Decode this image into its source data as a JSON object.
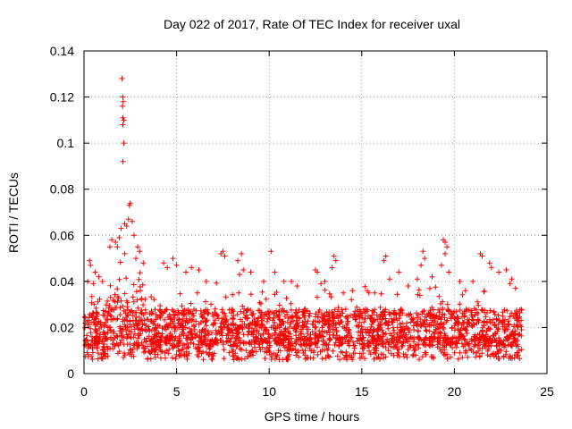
{
  "chart_data": {
    "type": "scatter",
    "title": "Day 022 of 2017, Rate Of TEC Index for receiver uxal",
    "xlabel": "GPS time / hours",
    "ylabel": "ROTI / TECUs",
    "xlim": [
      0,
      25
    ],
    "ylim": [
      0,
      0.14
    ],
    "x_ticks": [
      0,
      5,
      10,
      15,
      20,
      25
    ],
    "x_tick_labels": [
      "0",
      "5",
      "10",
      "15",
      "20",
      "25"
    ],
    "y_ticks": [
      0,
      0.02,
      0.04,
      0.06,
      0.08,
      0.1,
      0.12,
      0.14
    ],
    "y_tick_labels": [
      "0",
      "0.02",
      "0.04",
      "0.06",
      "0.08",
      "0.1",
      "0.12",
      "0.14"
    ],
    "grid": true,
    "marker": "+",
    "color": "#ff0000",
    "series": [
      {
        "points": [
          [
            2.05,
            0.128
          ],
          [
            2.1,
            0.12
          ],
          [
            2.12,
            0.118
          ],
          [
            2.08,
            0.116
          ],
          [
            2.1,
            0.111
          ],
          [
            2.15,
            0.11
          ],
          [
            2.1,
            0.108
          ],
          [
            2.15,
            0.1
          ],
          [
            2.1,
            0.092
          ],
          [
            2.5,
            0.074
          ],
          [
            2.45,
            0.073
          ],
          [
            2.4,
            0.067
          ],
          [
            2.6,
            0.066
          ],
          [
            2.2,
            0.065
          ],
          [
            2.0,
            0.063
          ],
          [
            2.3,
            0.064
          ],
          [
            2.7,
            0.06
          ],
          [
            1.9,
            0.059
          ],
          [
            1.7,
            0.057
          ],
          [
            1.5,
            0.058
          ],
          [
            1.8,
            0.055
          ],
          [
            2.9,
            0.055
          ],
          [
            1.4,
            0.055
          ],
          [
            3.0,
            0.053
          ],
          [
            2.2,
            0.052
          ],
          [
            2.8,
            0.05
          ],
          [
            3.2,
            0.048
          ],
          [
            0.3,
            0.049
          ],
          [
            0.35,
            0.047
          ],
          [
            0.6,
            0.044
          ],
          [
            0.8,
            0.042
          ],
          [
            1.0,
            0.04
          ],
          [
            0.5,
            0.039
          ],
          [
            0.2,
            0.04
          ],
          [
            4.3,
            0.048
          ],
          [
            4.5,
            0.046
          ],
          [
            4.8,
            0.05
          ],
          [
            5.0,
            0.047
          ],
          [
            5.8,
            0.046
          ],
          [
            5.5,
            0.044
          ],
          [
            6.2,
            0.045
          ],
          [
            6.6,
            0.04
          ],
          [
            7.5,
            0.053
          ],
          [
            7.6,
            0.051
          ],
          [
            7.4,
            0.052
          ],
          [
            8.3,
            0.049
          ],
          [
            8.5,
            0.052
          ],
          [
            8.6,
            0.045
          ],
          [
            8.4,
            0.043
          ],
          [
            9.0,
            0.044
          ],
          [
            9.7,
            0.04
          ],
          [
            10.1,
            0.053
          ],
          [
            10.3,
            0.044
          ],
          [
            10.8,
            0.04
          ],
          [
            11.2,
            0.04
          ],
          [
            11.5,
            0.038
          ],
          [
            12.5,
            0.045
          ],
          [
            12.6,
            0.044
          ],
          [
            12.8,
            0.039
          ],
          [
            13.5,
            0.051
          ],
          [
            13.6,
            0.049
          ],
          [
            13.4,
            0.046
          ],
          [
            13.0,
            0.04
          ],
          [
            14.0,
            0.035
          ],
          [
            14.5,
            0.036
          ],
          [
            15.3,
            0.036
          ],
          [
            15.7,
            0.035
          ],
          [
            16.3,
            0.051
          ],
          [
            16.2,
            0.049
          ],
          [
            16.5,
            0.041
          ],
          [
            17.0,
            0.044
          ],
          [
            17.5,
            0.038
          ],
          [
            18.0,
            0.041
          ],
          [
            18.3,
            0.053
          ],
          [
            18.4,
            0.05
          ],
          [
            18.2,
            0.047
          ],
          [
            18.8,
            0.042
          ],
          [
            19.4,
            0.058
          ],
          [
            19.5,
            0.057
          ],
          [
            19.6,
            0.055
          ],
          [
            19.5,
            0.052
          ],
          [
            19.7,
            0.044
          ],
          [
            19.3,
            0.047
          ],
          [
            20.3,
            0.04
          ],
          [
            20.6,
            0.036
          ],
          [
            21.4,
            0.052
          ],
          [
            21.5,
            0.051
          ],
          [
            21.0,
            0.04
          ],
          [
            21.9,
            0.048
          ],
          [
            22.0,
            0.046
          ],
          [
            22.4,
            0.044
          ],
          [
            22.8,
            0.045
          ],
          [
            23.0,
            0.039
          ],
          [
            23.3,
            0.037
          ],
          [
            23.1,
            0.041
          ]
        ]
      }
    ]
  }
}
